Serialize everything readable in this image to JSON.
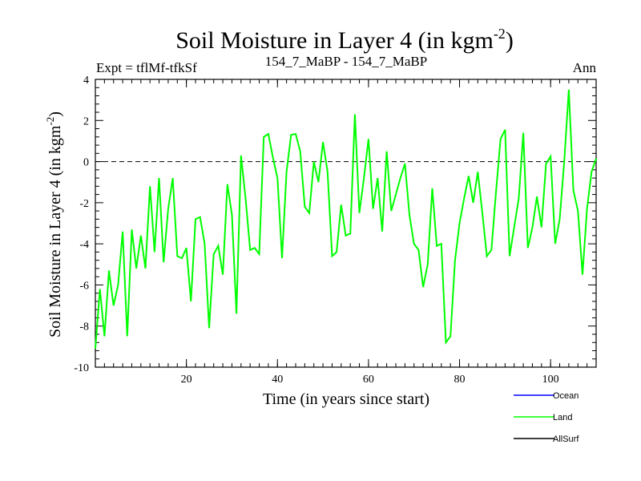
{
  "chart_data": {
    "type": "line",
    "title": "Soil Moisture in Layer 4 (in kgm",
    "title_sup": "-2",
    "title_close": ")",
    "subtitle_left": "Expt = tflMf-tfkSf",
    "subtitle_center": "154_7_MaBP - 154_7_MaBP",
    "subtitle_right": "Ann",
    "xlabel": "Time (in years since start)",
    "ylabel": "Soil Moisture in Layer 4 (in kgm",
    "ylabel_sup": "-2",
    "ylabel_close": ")",
    "xlim": [
      0,
      110
    ],
    "ylim": [
      -10,
      4
    ],
    "x_ticks": [
      20,
      40,
      60,
      80,
      100
    ],
    "y_ticks": [
      -10,
      -8,
      -6,
      -4,
      -2,
      0,
      2,
      4
    ],
    "reference_line": 0,
    "series": [
      {
        "name": "Land",
        "color": "#00ff00",
        "x": [
          0,
          1,
          2,
          3,
          4,
          5,
          6,
          7,
          8,
          9,
          10,
          11,
          12,
          13,
          14,
          15,
          16,
          17,
          18,
          19,
          20,
          21,
          22,
          23,
          24,
          25,
          26,
          27,
          28,
          29,
          30,
          31,
          32,
          33,
          34,
          35,
          36,
          37,
          38,
          39,
          40,
          41,
          42,
          43,
          44,
          45,
          46,
          47,
          48,
          49,
          50,
          51,
          52,
          53,
          54,
          55,
          56,
          57,
          58,
          59,
          60,
          61,
          62,
          63,
          64,
          65,
          66,
          67,
          68,
          69,
          70,
          71,
          72,
          73,
          74,
          75,
          76,
          77,
          78,
          79,
          80,
          81,
          82,
          83,
          84,
          85,
          86,
          87,
          88,
          89,
          90,
          91,
          92,
          93,
          94,
          95,
          96,
          97,
          98,
          99,
          100,
          101,
          102,
          103,
          104,
          105,
          106,
          107,
          108,
          109,
          110
        ],
        "values": [
          -9.1,
          -6.2,
          -8.5,
          -5.3,
          -7.0,
          -6.0,
          -3.4,
          -8.5,
          -3.3,
          -5.2,
          -3.6,
          -5.2,
          -1.2,
          -4.4,
          -0.8,
          -4.9,
          -2.3,
          -0.8,
          -4.6,
          -4.7,
          -4.2,
          -6.8,
          -2.8,
          -2.7,
          -4.0,
          -8.1,
          -4.5,
          -4.1,
          -5.5,
          -1.1,
          -2.6,
          -7.4,
          0.3,
          -1.8,
          -4.3,
          -4.2,
          -4.5,
          1.2,
          1.35,
          0.2,
          -0.8,
          -4.7,
          -0.5,
          1.3,
          1.35,
          0.5,
          -2.2,
          -2.5,
          0.0,
          -1.0,
          0.95,
          -0.5,
          -4.6,
          -4.4,
          -2.1,
          -3.6,
          -3.5,
          2.3,
          -2.5,
          -0.8,
          1.1,
          -2.3,
          -0.8,
          -3.4,
          0.5,
          -2.4,
          -1.6,
          -0.8,
          -0.1,
          -2.6,
          -4.0,
          -4.3,
          -6.1,
          -5.0,
          -1.3,
          -4.1,
          -4.0,
          -8.8,
          -8.5,
          -4.8,
          -3.0,
          -1.8,
          -0.7,
          -2.0,
          -0.5,
          -2.5,
          -4.6,
          -4.3,
          -1.5,
          1.1,
          1.55,
          -4.6,
          -3.2,
          -1.8,
          1.4,
          -4.2,
          -3.2,
          -1.7,
          -3.2,
          -0.1,
          0.25,
          -4.0,
          -2.8,
          0.0,
          3.5,
          -1.4,
          -2.4,
          -5.5,
          -2.3,
          -0.5,
          0.15
        ]
      }
    ],
    "legend": [
      {
        "name": "Ocean",
        "color": "#0000ff"
      },
      {
        "name": "Land",
        "color": "#00ff00"
      },
      {
        "name": "AllSurf",
        "color": "#000000"
      }
    ]
  }
}
